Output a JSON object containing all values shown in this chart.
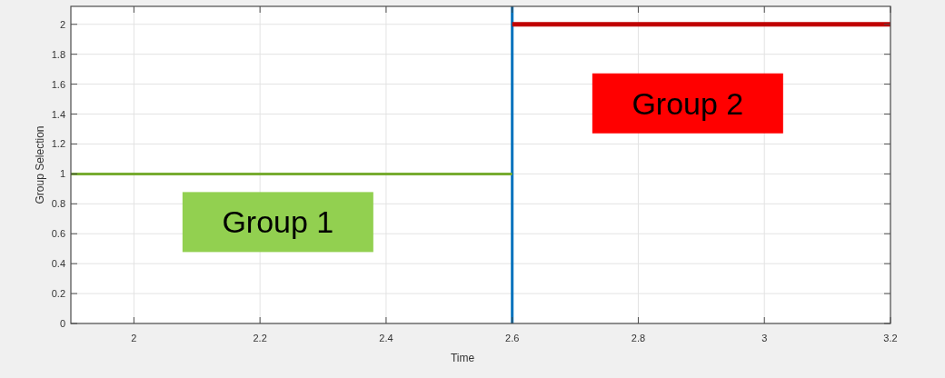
{
  "chart_data": {
    "type": "line",
    "xlabel": "Time",
    "ylabel": "Group Selection",
    "xlim": [
      1.9,
      3.2
    ],
    "xticks": [
      2,
      2.2,
      2.4,
      2.6,
      2.8,
      3,
      3.2
    ],
    "ylim": [
      0,
      2.12
    ],
    "yticks": [
      0,
      0.2,
      0.4,
      0.6,
      0.8,
      1,
      1.2,
      1.4,
      1.6,
      1.8,
      2
    ],
    "grid": true,
    "series": [
      {
        "name": "Group 1",
        "color": "#77ac30",
        "x": [
          1.9,
          2.6
        ],
        "values": [
          1,
          1
        ]
      },
      {
        "name": "Group 2",
        "color": "#c00000",
        "x": [
          2.6,
          3.2
        ],
        "values": [
          2,
          2
        ]
      }
    ],
    "ref_lines": [
      {
        "axis": "x",
        "value": 2.6,
        "color": "#0072bd"
      }
    ]
  }
}
